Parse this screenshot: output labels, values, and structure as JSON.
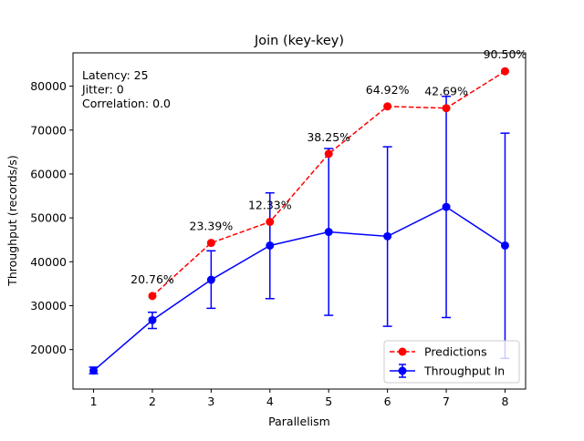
{
  "chart_data": {
    "type": "line",
    "title": "Join (key-key)",
    "xlabel": "Parallelism",
    "ylabel": "Throughput (records/s)",
    "x": [
      1,
      2,
      3,
      4,
      5,
      6,
      7,
      8
    ],
    "xlim": [
      0.65,
      8.35
    ],
    "ylim": [
      11000,
      87600
    ],
    "x_ticks": [
      1,
      2,
      3,
      4,
      5,
      6,
      7,
      8
    ],
    "y_ticks": [
      20000,
      30000,
      40000,
      50000,
      60000,
      70000,
      80000
    ],
    "grid": false,
    "legend_position": "lower-right",
    "info_lines": [
      "Latency: 25",
      "Jitter: 0",
      "Correlation: 0.0"
    ],
    "series": [
      {
        "name": "Predictions",
        "color": "#ff0000",
        "line_style": "dashed",
        "marker": "circle",
        "x": [
          2,
          3,
          4,
          5,
          6,
          7,
          8
        ],
        "values": [
          32200,
          44300,
          49100,
          64600,
          75400,
          75000,
          83400
        ],
        "point_labels": [
          "20.76%",
          "23.39%",
          "12.33%",
          "38.25%",
          "64.92%",
          "42.69%",
          "90.50%"
        ]
      },
      {
        "name": "Throughput In",
        "color": "#0000ff",
        "line_style": "solid",
        "marker": "circle",
        "x": [
          1,
          2,
          3,
          4,
          5,
          6,
          7,
          8
        ],
        "values": [
          15200,
          26700,
          35900,
          43700,
          46800,
          45800,
          52500,
          43700
        ],
        "error_low": [
          14500,
          24800,
          29400,
          31600,
          27800,
          25300,
          27300,
          18000
        ],
        "error_high": [
          16000,
          28500,
          42500,
          55700,
          65800,
          66200,
          77700,
          69300
        ]
      }
    ]
  }
}
